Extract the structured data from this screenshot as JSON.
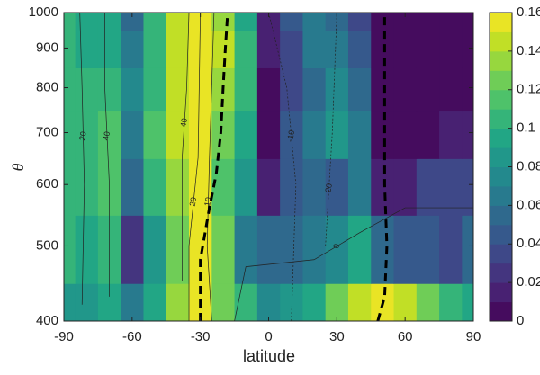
{
  "chart_data": {
    "type": "filled-contour",
    "xlabel": "latitude",
    "ylabel": "θ",
    "x": [
      -90,
      -80,
      -70,
      -60,
      -50,
      -40,
      -30,
      -20,
      -10,
      0,
      10,
      20,
      30,
      40,
      50,
      60,
      70,
      80,
      90
    ],
    "y": [
      400,
      500,
      600,
      700,
      800,
      900,
      1000
    ],
    "z": [
      [
        0.08,
        0.08,
        0.09,
        0.06,
        0.09,
        0.13,
        0.16,
        0.12,
        0.1,
        0.07,
        0.08,
        0.09,
        0.12,
        0.14,
        0.15,
        0.14,
        0.12,
        0.1,
        0.09
      ],
      [
        0.1,
        0.09,
        0.1,
        0.02,
        0.08,
        0.12,
        0.16,
        0.12,
        0.06,
        0.05,
        0.05,
        0.06,
        0.07,
        0.09,
        0.05,
        0.04,
        0.04,
        0.03,
        0.05
      ],
      [
        0.1,
        0.1,
        0.11,
        0.05,
        0.1,
        0.13,
        0.15,
        0.11,
        0.08,
        0.01,
        0.04,
        0.05,
        0.04,
        0.06,
        0.01,
        0.01,
        0.03,
        0.03,
        0.03
      ],
      [
        0.1,
        0.1,
        0.11,
        0.06,
        0.11,
        0.14,
        0.16,
        0.12,
        0.09,
        0.0,
        0.04,
        0.06,
        0.08,
        0.06,
        0.0,
        0.0,
        0.0,
        0.01,
        0.01
      ],
      [
        0.1,
        0.1,
        0.1,
        0.07,
        0.1,
        0.14,
        0.16,
        0.13,
        0.1,
        0.0,
        0.03,
        0.05,
        0.07,
        0.05,
        0.0,
        0.0,
        0.0,
        0.0,
        0.0
      ],
      [
        0.1,
        0.09,
        0.09,
        0.06,
        0.1,
        0.14,
        0.16,
        0.14,
        0.1,
        0.01,
        0.03,
        0.06,
        0.06,
        0.04,
        0.0,
        0.0,
        0.0,
        0.0,
        0.0
      ],
      [
        0.1,
        0.09,
        0.09,
        0.05,
        0.1,
        0.14,
        0.15,
        0.13,
        0.09,
        0.01,
        0.04,
        0.06,
        0.05,
        0.03,
        0.0,
        0.0,
        0.0,
        0.0,
        0.0
      ]
    ],
    "colormap": "viridis",
    "color_levels": 16,
    "clim": [
      0,
      0.16
    ],
    "cticks": [
      0,
      0.02,
      0.04,
      0.06,
      0.08,
      0.1,
      0.12,
      0.14,
      0.16
    ],
    "xlim": [
      -90,
      90
    ],
    "xticks": [
      -90,
      -60,
      -30,
      0,
      30,
      60,
      90
    ],
    "ylim": [
      400,
      1000
    ],
    "yticks": [
      400,
      500,
      600,
      700,
      800,
      900,
      1000
    ],
    "ylog": true,
    "contours": [
      {
        "level": 20,
        "lat": [
          -82,
          -81,
          -82,
          -83
        ],
        "theta": [
          420,
          600,
          800,
          1000
        ]
      },
      {
        "level": 40,
        "lat": [
          -70,
          -70,
          -72,
          -72
        ],
        "theta": [
          430,
          600,
          800,
          1000
        ]
      },
      {
        "level": 40,
        "lat": [
          -38,
          -38,
          -36,
          -35
        ],
        "theta": [
          450,
          650,
          800,
          1000
        ]
      },
      {
        "level": 20,
        "lat": [
          -35,
          -35,
          -31,
          -30
        ],
        "theta": [
          400,
          500,
          650,
          1000
        ]
      },
      {
        "level": 10,
        "lat": [
          -25,
          -27,
          -26,
          -24
        ],
        "theta": [
          400,
          500,
          650,
          1000
        ]
      },
      {
        "level": -10,
        "lat": [
          10,
          12,
          8,
          0
        ],
        "theta": [
          400,
          600,
          800,
          1000
        ]
      },
      {
        "level": -20,
        "lat": [
          25,
          28,
          30
        ],
        "theta": [
          500,
          700,
          1000
        ]
      },
      {
        "level": 0,
        "lat": [
          -15,
          -10,
          20,
          40,
          60,
          90
        ],
        "theta": [
          400,
          470,
          480,
          520,
          560,
          560
        ]
      }
    ],
    "zero_lines": [
      {
        "lat": [
          -30,
          -30,
          -26,
          -23,
          -21,
          -20,
          -19,
          -18
        ],
        "theta": [
          400,
          480,
          560,
          620,
          700,
          800,
          900,
          1000
        ]
      },
      {
        "lat": [
          48,
          51,
          52,
          51,
          51,
          51,
          51,
          51
        ],
        "theta": [
          400,
          430,
          500,
          600,
          700,
          800,
          900,
          1000
        ]
      }
    ]
  }
}
